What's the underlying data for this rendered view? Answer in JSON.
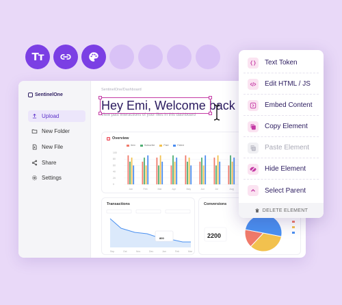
{
  "toolbar": {
    "buttons": [
      {
        "name": "text-token-tool",
        "glyph": "Tт"
      },
      {
        "name": "link-tool"
      },
      {
        "name": "palette-tool"
      }
    ],
    "ghost_count": 4,
    "accent": "#7b3fe4"
  },
  "app": {
    "brand": "SentinelOne",
    "breadcrumb": "SentinelOne/Dashboard",
    "title": "Hey Emi, Welcome back",
    "subtitle": "View past interactions of your files in this dashboard",
    "nav": [
      {
        "label": "Upload",
        "icon": "upload-icon",
        "active": true
      },
      {
        "label": "New Folder",
        "icon": "folder-icon",
        "active": false
      },
      {
        "label": "New File",
        "icon": "file-icon",
        "active": false
      },
      {
        "label": "Share",
        "icon": "share-icon",
        "active": false
      },
      {
        "label": "Settings",
        "icon": "gear-icon",
        "active": false
      }
    ],
    "overview": {
      "title": "Overview",
      "legend": [
        "Item",
        "Subscribe",
        "Paid",
        "Failed"
      ],
      "yticks": [
        "100",
        "80",
        "60",
        "40",
        "20",
        "0"
      ],
      "months": [
        "Jan",
        "Feb",
        "Mar",
        "Apr",
        "May",
        "Jun",
        "Jul",
        "Aug",
        "Sep",
        "Oct",
        "Nov",
        "Dec"
      ],
      "series_colors": [
        "#f07a6a",
        "#4fae73",
        "#f2c14e",
        "#4a8cf0"
      ]
    },
    "transactions": {
      "title": "Transactions",
      "tooltip_value": "800",
      "months": [
        "Sep",
        "Oct",
        "Nov",
        "Dec",
        "Jan",
        "Feb",
        "Mar"
      ]
    },
    "conversions": {
      "title": "Conversions",
      "value": "2200",
      "pie_colors": [
        "#4a90f0",
        "#f2c14e",
        "#f07a6a"
      ]
    }
  },
  "menu": {
    "items": [
      {
        "label": "Text Token",
        "icon": "braces-icon",
        "disabled": false
      },
      {
        "label": "Edit HTML / JS",
        "icon": "code-icon",
        "disabled": false
      },
      {
        "label": "Embed Content",
        "icon": "embed-icon",
        "disabled": false
      },
      {
        "label": "Copy Element",
        "icon": "copy-icon",
        "disabled": false
      },
      {
        "label": "Paste Element",
        "icon": "paste-icon",
        "disabled": true
      },
      {
        "label": "Hide Element",
        "icon": "eye-off-icon",
        "disabled": false
      },
      {
        "label": "Select Parent",
        "icon": "chevron-up-icon",
        "disabled": false
      }
    ],
    "delete_label": "DELETE ELEMENT",
    "accent": "#c43aa5"
  }
}
